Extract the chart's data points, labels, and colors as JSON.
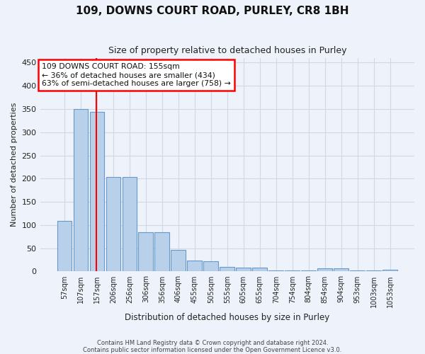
{
  "title": "109, DOWNS COURT ROAD, PURLEY, CR8 1BH",
  "subtitle": "Size of property relative to detached houses in Purley",
  "xlabel": "Distribution of detached houses by size in Purley",
  "ylabel": "Number of detached properties",
  "bar_color": "#b8d0ea",
  "bar_edge_color": "#6699cc",
  "categories": [
    "57sqm",
    "107sqm",
    "157sqm",
    "206sqm",
    "256sqm",
    "306sqm",
    "356sqm",
    "406sqm",
    "455sqm",
    "505sqm",
    "555sqm",
    "605sqm",
    "655sqm",
    "704sqm",
    "754sqm",
    "804sqm",
    "854sqm",
    "904sqm",
    "953sqm",
    "1003sqm",
    "1053sqm"
  ],
  "values": [
    109,
    350,
    344,
    203,
    203,
    84,
    84,
    46,
    23,
    22,
    10,
    8,
    8,
    2,
    2,
    2,
    7,
    7,
    2,
    2,
    4
  ],
  "ylim": [
    0,
    460
  ],
  "yticks": [
    0,
    50,
    100,
    150,
    200,
    250,
    300,
    350,
    400,
    450
  ],
  "property_line_x": 1.96,
  "annotation_line1": "109 DOWNS COURT ROAD: 155sqm",
  "annotation_line2": "← 36% of detached houses are smaller (434)",
  "annotation_line3": "63% of semi-detached houses are larger (758) →",
  "annotation_box_color": "white",
  "annotation_box_edge_color": "red",
  "property_line_color": "red",
  "grid_color": "#d0d8e8",
  "background_color": "#eef2fa",
  "footer_line1": "Contains HM Land Registry data © Crown copyright and database right 2024.",
  "footer_line2": "Contains public sector information licensed under the Open Government Licence v3.0."
}
